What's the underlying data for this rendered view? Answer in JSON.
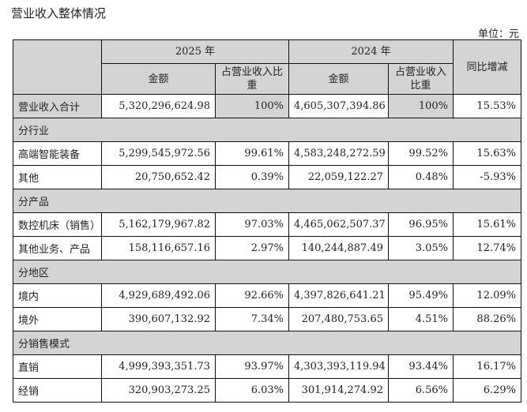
{
  "title": "营业收入整体情况",
  "unit": "单位：元",
  "header": {
    "y2025": "2025 年",
    "y2024": "2024 年",
    "amount": "金额",
    "share2025": "占营业收入比重",
    "share2024": "占营业收入比重",
    "yoy": "同比增减"
  },
  "total": {
    "label": "营业收入合计",
    "a2025": "5,320,296,624.98",
    "p2025": "100%",
    "a2024": "4,605,307,394.86",
    "p2024": "100%",
    "yoy": "15.53%"
  },
  "sections": [
    {
      "label": "分行业",
      "rows": [
        {
          "label": "高端智能装备",
          "a2025": "5,299,545,972.56",
          "p2025": "99.61%",
          "a2024": "4,583,248,272.59",
          "p2024": "99.52%",
          "yoy": "15.63%"
        },
        {
          "label": "其他",
          "a2025": "20,750,652.42",
          "p2025": "0.39%",
          "a2024": "22,059,122.27",
          "p2024": "0.48%",
          "yoy": "-5.93%"
        }
      ]
    },
    {
      "label": "分产品",
      "rows": [
        {
          "label": "数控机床（销售）",
          "a2025": "5,162,179,967.82",
          "p2025": "97.03%",
          "a2024": "4,465,062,507.37",
          "p2024": "96.95%",
          "yoy": "15.61%"
        },
        {
          "label": "其他业务、产品",
          "a2025": "158,116,657.16",
          "p2025": "2.97%",
          "a2024": "140,244,887.49",
          "p2024": "3.05%",
          "yoy": "12.74%"
        }
      ]
    },
    {
      "label": "分地区",
      "rows": [
        {
          "label": "境内",
          "a2025": "4,929,689,492.06",
          "p2025": "92.66%",
          "a2024": "4,397,826,641.21",
          "p2024": "95.49%",
          "yoy": "12.09%"
        },
        {
          "label": "境外",
          "a2025": "390,607,132.92",
          "p2025": "7.34%",
          "a2024": "207,480,753.65",
          "p2024": "4.51%",
          "yoy": "88.26%"
        }
      ]
    },
    {
      "label": "分销售模式",
      "rows": [
        {
          "label": "直销",
          "a2025": "4,999,393,351.73",
          "p2025": "93.97%",
          "a2024": "4,303,393,119.94",
          "p2024": "93.44%",
          "yoy": "16.17%"
        },
        {
          "label": "经销",
          "a2025": "320,903,273.25",
          "p2025": "6.03%",
          "a2024": "301,914,274.92",
          "p2024": "6.56%",
          "yoy": "6.29%"
        }
      ]
    }
  ]
}
